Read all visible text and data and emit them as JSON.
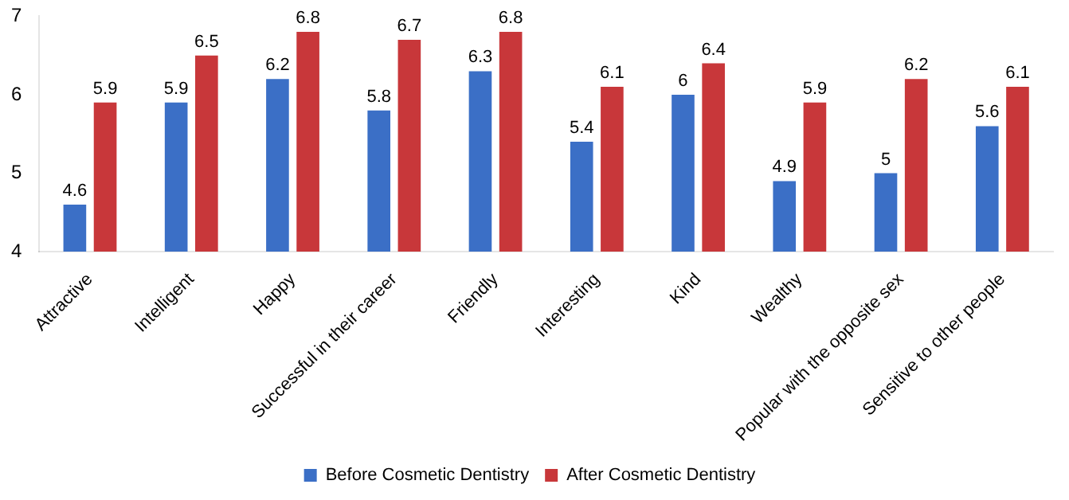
{
  "chart_data": {
    "type": "bar",
    "categories": [
      "Attractive",
      "Intelligent",
      "Happy",
      "Successful in their career",
      "Friendly",
      "Interesting",
      "Kind",
      "Wealthy",
      "Popular with the opposite sex",
      "Sensitive to other people"
    ],
    "series": [
      {
        "name": "Before Cosmetic Dentistry",
        "color": "#3b6fc6",
        "values": [
          4.6,
          5.9,
          6.2,
          5.8,
          6.3,
          5.4,
          6,
          4.9,
          5,
          5.6
        ]
      },
      {
        "name": "After Cosmetic Dentistry",
        "color": "#c8373a",
        "values": [
          5.9,
          6.5,
          6.8,
          6.7,
          6.8,
          6.1,
          6.4,
          5.9,
          6.2,
          6.1
        ]
      }
    ],
    "ylim": [
      4,
      7
    ],
    "yticks": [
      4,
      5,
      6,
      7
    ],
    "grid": false,
    "legend": "bottom",
    "data_labels": true
  }
}
